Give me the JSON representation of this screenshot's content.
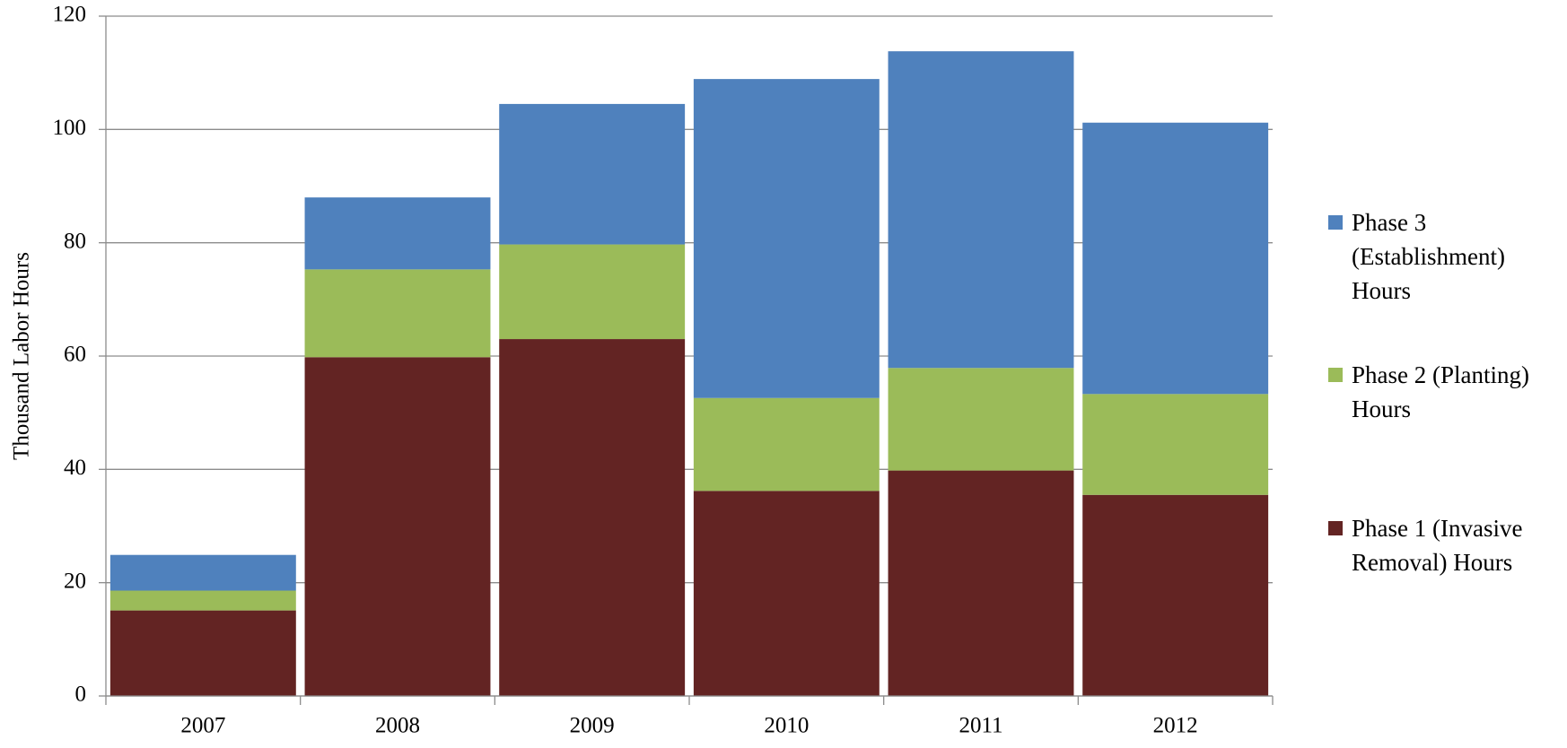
{
  "chart_data": {
    "type": "stacked_bar",
    "y_label": "Thousand Labor Hours",
    "categories": [
      "2007",
      "2008",
      "2009",
      "2010",
      "2011",
      "2012"
    ],
    "series": [
      {
        "name": "Phase 1 (Invasive Removal) Hours",
        "color": "#632423",
        "values": [
          15.1,
          59.8,
          63.0,
          36.2,
          39.8,
          35.5
        ]
      },
      {
        "name": "Phase 2 (Planting) Hours",
        "color": "#9bbb59",
        "values": [
          3.5,
          15.5,
          16.7,
          16.4,
          18.1,
          17.8
        ]
      },
      {
        "name": "Phase 3 (Establishment) Hours",
        "color": "#4f81bd",
        "values": [
          6.3,
          12.7,
          24.8,
          56.3,
          55.9,
          47.9
        ]
      }
    ],
    "ylim": [
      0,
      120
    ],
    "yticks": [
      0,
      20,
      40,
      60,
      80,
      100,
      120
    ],
    "grid": true
  }
}
